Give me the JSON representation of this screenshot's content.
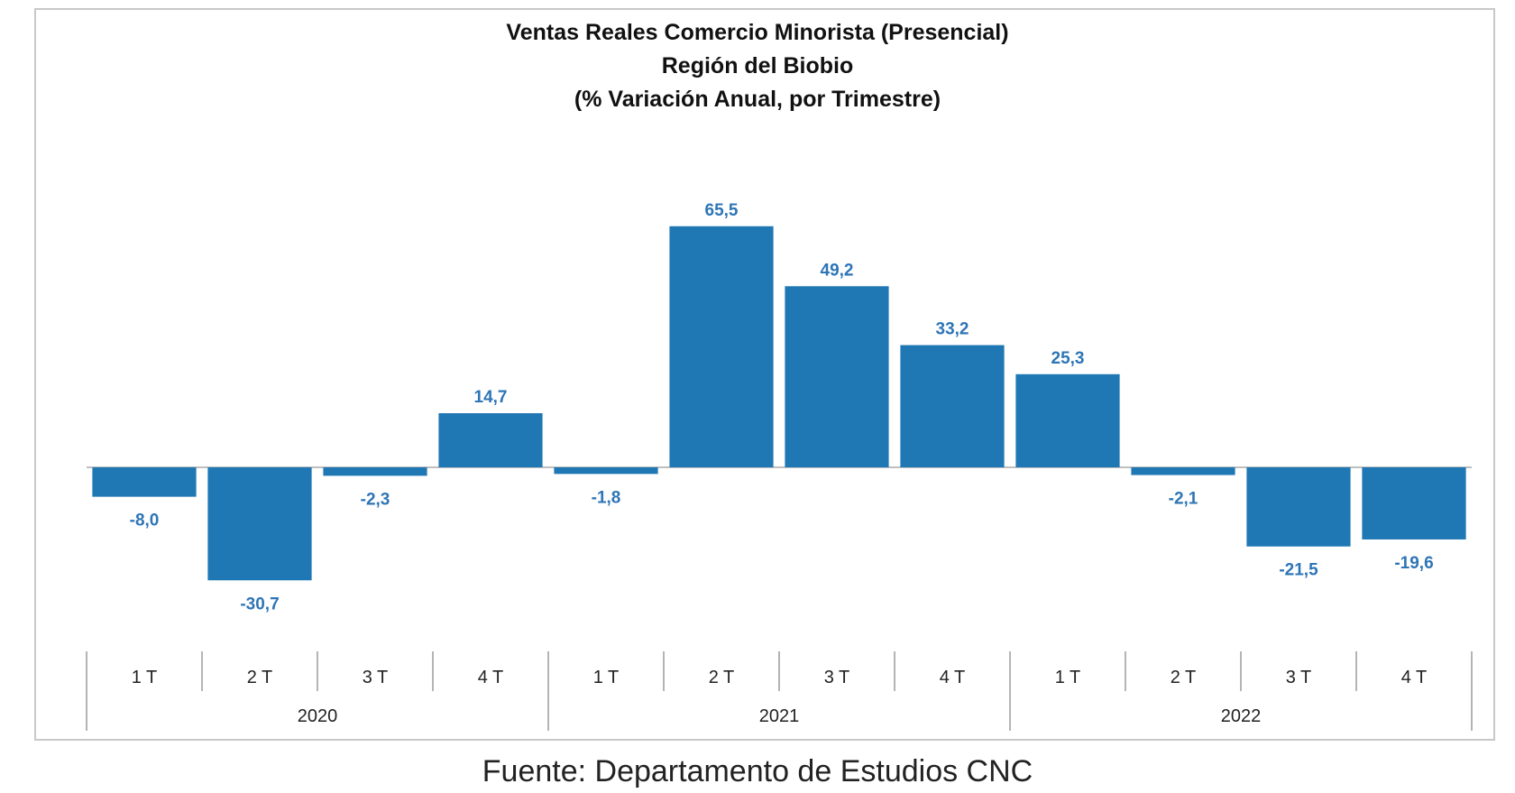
{
  "chart_data": {
    "type": "bar",
    "title": "Ventas Reales Comercio Minorista (Presencial)",
    "subtitle_1": "Región del Biobio",
    "subtitle_2": "(% Variación Anual, por Trimestre)",
    "categories": [
      "1 T",
      "2 T",
      "3 T",
      "4 T",
      "1 T",
      "2 T",
      "3 T",
      "4 T",
      "1 T",
      "2 T",
      "3 T",
      "4 T"
    ],
    "groups": [
      {
        "label": "2020",
        "count": 4
      },
      {
        "label": "2021",
        "count": 4
      },
      {
        "label": "2022",
        "count": 4
      }
    ],
    "values": [
      -8.0,
      -30.7,
      -2.3,
      14.7,
      -1.8,
      65.5,
      49.2,
      33.2,
      25.3,
      -2.1,
      -21.5,
      -19.6
    ],
    "value_labels": [
      "-8,0",
      "-30,7",
      "-2,3",
      "14,7",
      "-1,8",
      "65,5",
      "49,2",
      "33,2",
      "25,3",
      "-2,1",
      "-21,5",
      "-19,6"
    ],
    "bar_color": "#1f77b4",
    "label_color": "#2e75b6",
    "grid": false,
    "legend": "none"
  },
  "source": "Fuente: Departamento de Estudios CNC"
}
